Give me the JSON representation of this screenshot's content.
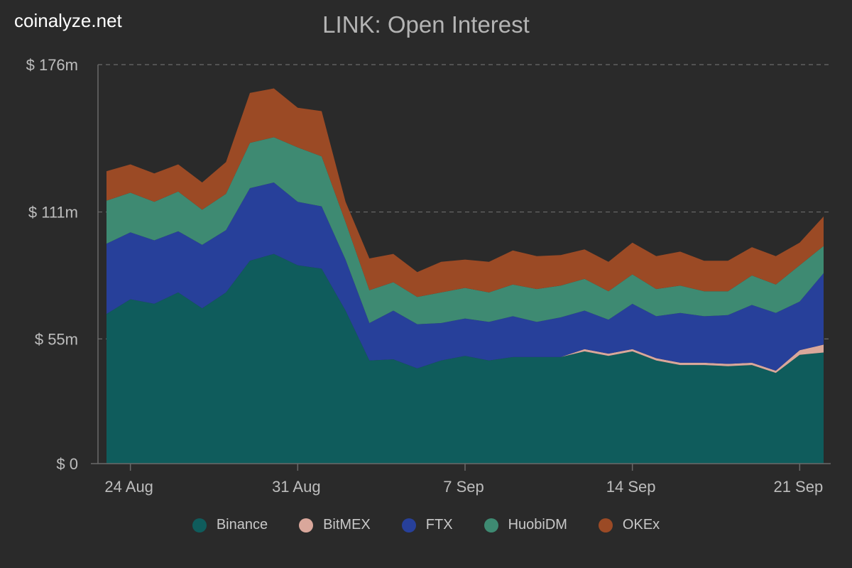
{
  "brand": "coinalyze.net",
  "colors": {
    "background": "#2a2a2a",
    "Binance": "#0f5c5c",
    "BitMEX": "#d9a79b",
    "FTX": "#27409a",
    "HuobiDM": "#3e8a72",
    "OKEx": "#9b4a25"
  },
  "chart_data": {
    "type": "area",
    "stacked": true,
    "title": "LINK: Open Interest",
    "xlabel": "",
    "ylabel": "",
    "ylim": [
      0,
      176
    ],
    "y_ticks": [
      {
        "value": 0,
        "label": "$ 0"
      },
      {
        "value": 55,
        "label": "$ 55m"
      },
      {
        "value": 111,
        "label": "$ 111m"
      },
      {
        "value": 176,
        "label": "$ 176m"
      }
    ],
    "x_ticks": [
      {
        "value": 24,
        "label": "24 Aug"
      },
      {
        "value": 31,
        "label": "31 Aug"
      },
      {
        "value": 38,
        "label": "7 Sep"
      },
      {
        "value": 45,
        "label": "14 Sep"
      },
      {
        "value": 52,
        "label": "21 Sep"
      }
    ],
    "xlim": [
      23,
      53
    ],
    "grid": "horizontal dashed",
    "legend_position": "bottom",
    "x": [
      "23 Aug",
      "24 Aug",
      "25 Aug",
      "26 Aug",
      "27 Aug",
      "28 Aug",
      "29 Aug",
      "30 Aug",
      "31 Aug",
      "1 Sep",
      "2 Sep",
      "3 Sep",
      "4 Sep",
      "5 Sep",
      "6 Sep",
      "7 Sep",
      "8 Sep",
      "9 Sep",
      "10 Sep",
      "11 Sep",
      "12 Sep",
      "13 Sep",
      "14 Sep",
      "15 Sep",
      "16 Sep",
      "17 Sep",
      "18 Sep",
      "19 Sep",
      "20 Sep",
      "21 Sep",
      "22 Sep"
    ],
    "series": [
      {
        "name": "Binance",
        "values": [
          66,
          72.5,
          70.5,
          75.5,
          68.5,
          75.5,
          89.5,
          92.5,
          87.5,
          86,
          67.5,
          45.5,
          46,
          42,
          45.5,
          47.5,
          45.5,
          47,
          47,
          47,
          49.5,
          47.5,
          49.5,
          45.5,
          43.5,
          43.5,
          43,
          43.5,
          40,
          48,
          49
        ]
      },
      {
        "name": "BitMEX",
        "values": [
          0,
          0,
          0,
          0,
          0,
          0,
          0,
          0,
          0,
          0,
          0,
          0,
          0,
          0,
          0,
          0,
          0,
          0,
          0,
          0,
          1,
          1,
          1,
          1,
          1,
          1,
          1,
          1,
          1,
          2,
          3.5
        ]
      },
      {
        "name": "FTX",
        "values": [
          31,
          29.5,
          28,
          27,
          28,
          27.5,
          32,
          31.5,
          28,
          27.5,
          22.5,
          16.5,
          21.5,
          19.5,
          16.5,
          16.5,
          17,
          18,
          15.5,
          17.5,
          17,
          15,
          20,
          18.5,
          22,
          20.5,
          21.5,
          25.5,
          25.5,
          21.5,
          31.5
        ]
      },
      {
        "name": "HuobiDM",
        "values": [
          19,
          17.5,
          17,
          17.5,
          15.5,
          16,
          20,
          20,
          24,
          22,
          16.5,
          14.5,
          12.5,
          12,
          13.5,
          13.5,
          13,
          14,
          14.5,
          14,
          14,
          12.5,
          13,
          12,
          12,
          11,
          10.5,
          13,
          12.5,
          16,
          12
        ]
      },
      {
        "name": "OKEx",
        "values": [
          13,
          12.5,
          12.5,
          12,
          12,
          14,
          22,
          21.5,
          17.5,
          20,
          9,
          14,
          12.5,
          11,
          13.5,
          12.5,
          13.5,
          15,
          14.5,
          13.5,
          13,
          13,
          14,
          14.5,
          15,
          13.5,
          13.5,
          12.5,
          12.5,
          10,
          13
        ]
      }
    ]
  },
  "legend": [
    "Binance",
    "BitMEX",
    "FTX",
    "HuobiDM",
    "OKEx"
  ]
}
